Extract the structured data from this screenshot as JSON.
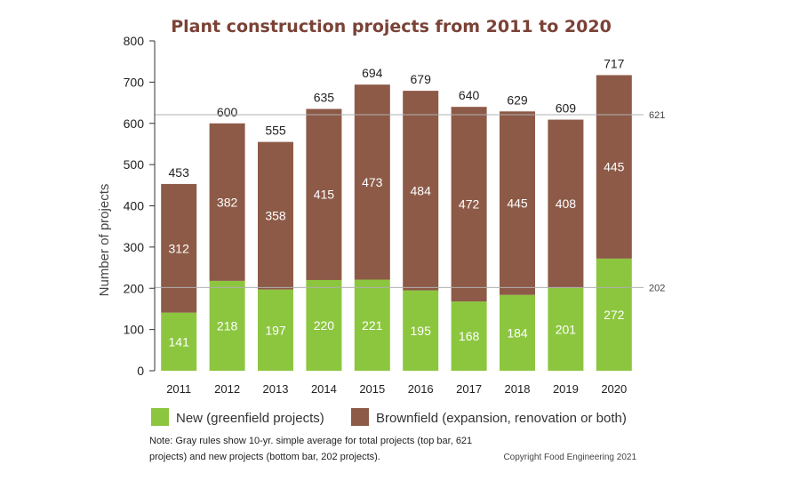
{
  "chart_data": {
    "type": "bar",
    "stacked": true,
    "title": "Plant construction projects from 2011 to 2020",
    "xlabel": "",
    "ylabel": "Number of projects",
    "ylim": [
      0,
      800
    ],
    "yticks": [
      0,
      100,
      200,
      300,
      400,
      500,
      600,
      700,
      800
    ],
    "categories": [
      "2011",
      "2012",
      "2013",
      "2014",
      "2015",
      "2016",
      "2017",
      "2018",
      "2019",
      "2020"
    ],
    "series": [
      {
        "name": "New (greenfield projects)",
        "color": "#8cc63f",
        "values": [
          141,
          218,
          197,
          220,
          221,
          195,
          168,
          184,
          201,
          272
        ]
      },
      {
        "name": "Brownfield (expansion, renovation or both)",
        "color": "#8d5a47",
        "values": [
          312,
          382,
          358,
          415,
          473,
          484,
          472,
          445,
          408,
          445
        ]
      }
    ],
    "totals": [
      453,
      600,
      555,
      635,
      694,
      679,
      640,
      629,
      609,
      717
    ],
    "reference_lines": [
      {
        "value": 621,
        "label": "621"
      },
      {
        "value": 202,
        "label": "202"
      }
    ],
    "legend_position": "bottom",
    "grid": false
  },
  "note": {
    "line1": "Note: Gray rules show 10-yr. simple average for total projects (top bar, 621",
    "line2": "projects) and new projects (bottom bar, 202 projects)."
  },
  "copyright": "Copyright Food Engineering 2021",
  "colors": {
    "title": "#7a4236",
    "rule": "#b0b0b0"
  }
}
